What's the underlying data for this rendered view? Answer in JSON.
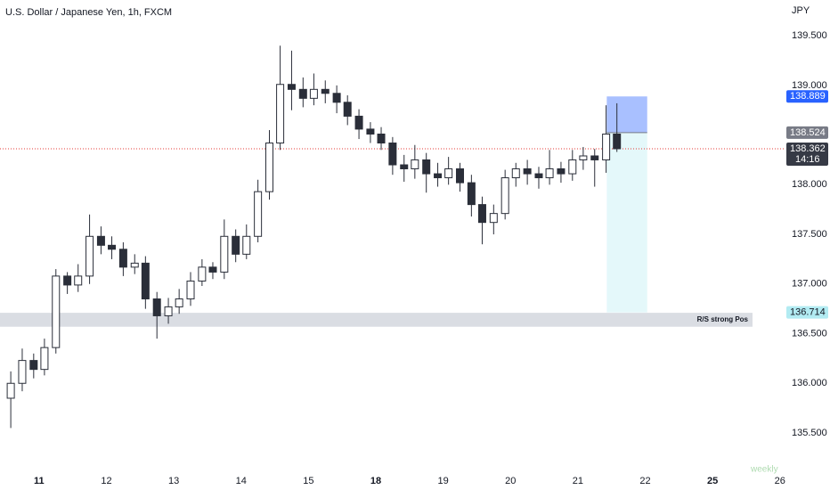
{
  "chart_data": {
    "type": "candlestick",
    "title": "U.S. Dollar / Japanese Yen, 1h, FXCM",
    "currency": "JPY",
    "up_color": "#ffffff",
    "down_color": "#2a2e39",
    "outline_color": "#2a2e39",
    "x": [
      -0.42,
      -0.25,
      -0.08,
      0.08,
      0.25,
      0.42,
      0.58,
      0.75,
      0.92,
      1.08,
      1.25,
      1.42,
      1.58,
      1.75,
      1.92,
      2.08,
      2.25,
      2.42,
      2.58,
      2.75,
      2.92,
      3.08,
      3.25,
      3.42,
      3.58,
      3.75,
      3.92,
      4.08,
      4.25,
      4.42,
      4.58,
      4.75,
      4.92,
      5.08,
      5.25,
      5.42,
      5.58,
      5.75,
      5.92,
      6.08,
      6.25,
      6.42,
      6.58,
      6.75,
      6.92,
      7.08,
      7.25,
      7.42,
      7.58,
      7.75,
      7.92,
      8.08,
      8.25,
      8.42,
      8.58
    ],
    "open": [
      135.85,
      136.0,
      136.23,
      136.14,
      136.36,
      137.08,
      136.99,
      137.08,
      137.48,
      137.39,
      137.35,
      137.17,
      137.21,
      136.85,
      136.68,
      136.77,
      136.85,
      137.03,
      137.17,
      137.12,
      137.48,
      137.3,
      137.48,
      137.93,
      138.42,
      139.01,
      138.96,
      138.87,
      138.96,
      138.92,
      138.83,
      138.69,
      138.56,
      138.51,
      138.42,
      138.2,
      138.16,
      138.25,
      138.11,
      138.07,
      138.16,
      138.02,
      137.8,
      137.62,
      137.71,
      138.07,
      138.16,
      138.11,
      138.07,
      138.16,
      138.11,
      138.25,
      138.29,
      138.25,
      138.51
    ],
    "high": [
      136.12,
      136.35,
      136.3,
      136.45,
      137.15,
      137.12,
      137.2,
      137.7,
      137.58,
      137.48,
      137.42,
      137.3,
      137.28,
      136.92,
      136.86,
      136.95,
      137.12,
      137.25,
      137.22,
      137.65,
      137.55,
      137.6,
      138.05,
      138.55,
      139.4,
      139.35,
      139.08,
      139.12,
      139.05,
      139.0,
      138.9,
      138.76,
      138.63,
      138.58,
      138.48,
      138.3,
      138.4,
      138.32,
      138.22,
      138.28,
      138.22,
      138.1,
      137.88,
      137.8,
      138.15,
      138.22,
      138.25,
      138.18,
      138.35,
      138.23,
      138.35,
      138.38,
      138.36,
      138.8,
      138.82
    ],
    "low": [
      135.55,
      135.92,
      136.05,
      136.08,
      136.3,
      136.9,
      136.92,
      137.0,
      137.3,
      137.25,
      137.08,
      137.1,
      136.75,
      136.45,
      136.6,
      136.7,
      136.78,
      136.98,
      137.05,
      137.05,
      137.22,
      137.25,
      137.42,
      137.85,
      138.35,
      138.75,
      138.78,
      138.8,
      138.82,
      138.72,
      138.6,
      138.46,
      138.42,
      138.35,
      138.1,
      138.03,
      138.06,
      137.92,
      137.98,
      138.0,
      137.93,
      137.68,
      137.4,
      137.5,
      137.65,
      137.98,
      138.0,
      137.96,
      138.0,
      138.02,
      138.04,
      138.15,
      137.98,
      138.12,
      138.33
    ],
    "close": [
      136.0,
      136.23,
      136.14,
      136.36,
      137.08,
      136.99,
      137.08,
      137.48,
      137.39,
      137.35,
      137.17,
      137.21,
      136.85,
      136.68,
      136.77,
      136.85,
      137.03,
      137.17,
      137.12,
      137.48,
      137.3,
      137.48,
      137.93,
      138.42,
      139.01,
      138.96,
      138.87,
      138.96,
      138.92,
      138.83,
      138.69,
      138.56,
      138.51,
      138.42,
      138.2,
      138.16,
      138.25,
      138.11,
      138.07,
      138.16,
      138.02,
      137.8,
      137.62,
      137.71,
      138.07,
      138.16,
      138.11,
      138.07,
      138.16,
      138.11,
      138.25,
      138.29,
      138.25,
      138.51,
      138.362
    ],
    "xlim": [
      -0.58,
      10.66
    ],
    "ylim": [
      135.15,
      139.86
    ],
    "xticks": [
      {
        "value": 0,
        "label": "11",
        "bold": true
      },
      {
        "value": 1,
        "label": "12"
      },
      {
        "value": 2,
        "label": "13"
      },
      {
        "value": 3,
        "label": "14"
      },
      {
        "value": 4,
        "label": "15"
      },
      {
        "value": 5,
        "label": "18",
        "bold": true
      },
      {
        "value": 6,
        "label": "19"
      },
      {
        "value": 7,
        "label": "20"
      },
      {
        "value": 8,
        "label": "21"
      },
      {
        "value": 9,
        "label": "22"
      },
      {
        "value": 10,
        "label": "25",
        "bold": true
      },
      {
        "value": 11,
        "label": "26"
      }
    ],
    "yticks": [
      {
        "value": 135.5,
        "label": "135.500"
      },
      {
        "value": 136,
        "label": "136.000"
      },
      {
        "value": 136.5,
        "label": "136.500"
      },
      {
        "value": 137,
        "label": "137.000"
      },
      {
        "value": 137.5,
        "label": "137.500"
      },
      {
        "value": 138,
        "label": "138.000"
      },
      {
        "value": 138.5,
        "label": "138.500"
      },
      {
        "value": 139,
        "label": "139.000"
      },
      {
        "value": 139.5,
        "label": "139.500"
      }
    ],
    "zone": {
      "low": 136.57,
      "high": 136.71,
      "label": "R/S strong Pos",
      "color": "#d1d4dc"
    },
    "position": {
      "x": [
        8.43,
        9.03
      ],
      "entry": 138.524,
      "target": 138.889,
      "stop": 136.714,
      "target_color": "#2962ff",
      "entry_color": "#787b86",
      "stop_color": "#b2ebf2"
    },
    "last_price": 138.362,
    "countdown": "14:16",
    "last_color": "#363a45",
    "line_color": "#e53935",
    "watermark": "weekly"
  }
}
